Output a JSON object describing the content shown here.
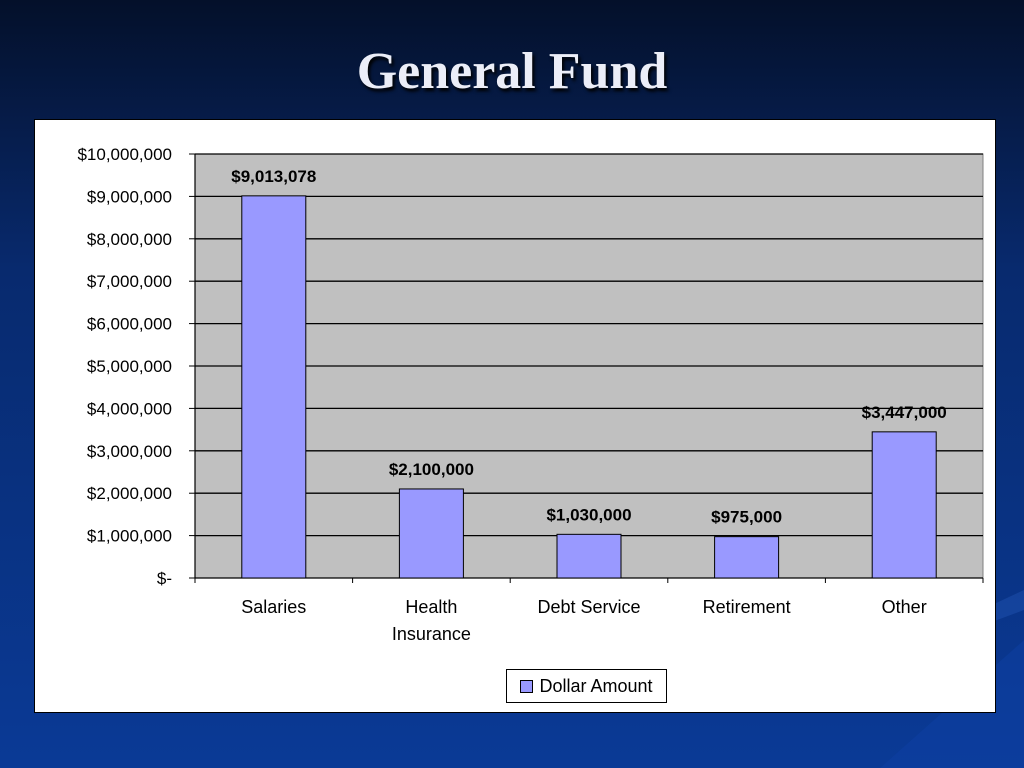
{
  "slide": {
    "title": "General Fund"
  },
  "colors": {
    "bar_fill": "#9999ff",
    "plot_bg": "#c0c0c0",
    "grid": "#000000"
  },
  "chart_data": {
    "type": "bar",
    "title": "",
    "xlabel": "",
    "ylabel": "",
    "categories": [
      "Salaries",
      "Health Insurance",
      "Debt Service",
      "Retirement",
      "Other"
    ],
    "series": [
      {
        "name": "Dollar Amount",
        "values": [
          9013078,
          2100000,
          1030000,
          975000,
          3447000
        ]
      }
    ],
    "data_labels": [
      "$9,013,078",
      "$2,100,000",
      "$1,030,000",
      "$975,000",
      "$3,447,000"
    ],
    "ylim": [
      0,
      10000000
    ],
    "yticks": [
      0,
      1000000,
      2000000,
      3000000,
      4000000,
      5000000,
      6000000,
      7000000,
      8000000,
      9000000,
      10000000
    ],
    "ytick_labels": [
      "$-",
      "$1,000,000",
      "$2,000,000",
      "$3,000,000",
      "$4,000,000",
      "$5,000,000",
      "$6,000,000",
      "$7,000,000",
      "$8,000,000",
      "$9,000,000",
      "$10,000,000"
    ],
    "grid": true,
    "legend_position": "bottom"
  }
}
